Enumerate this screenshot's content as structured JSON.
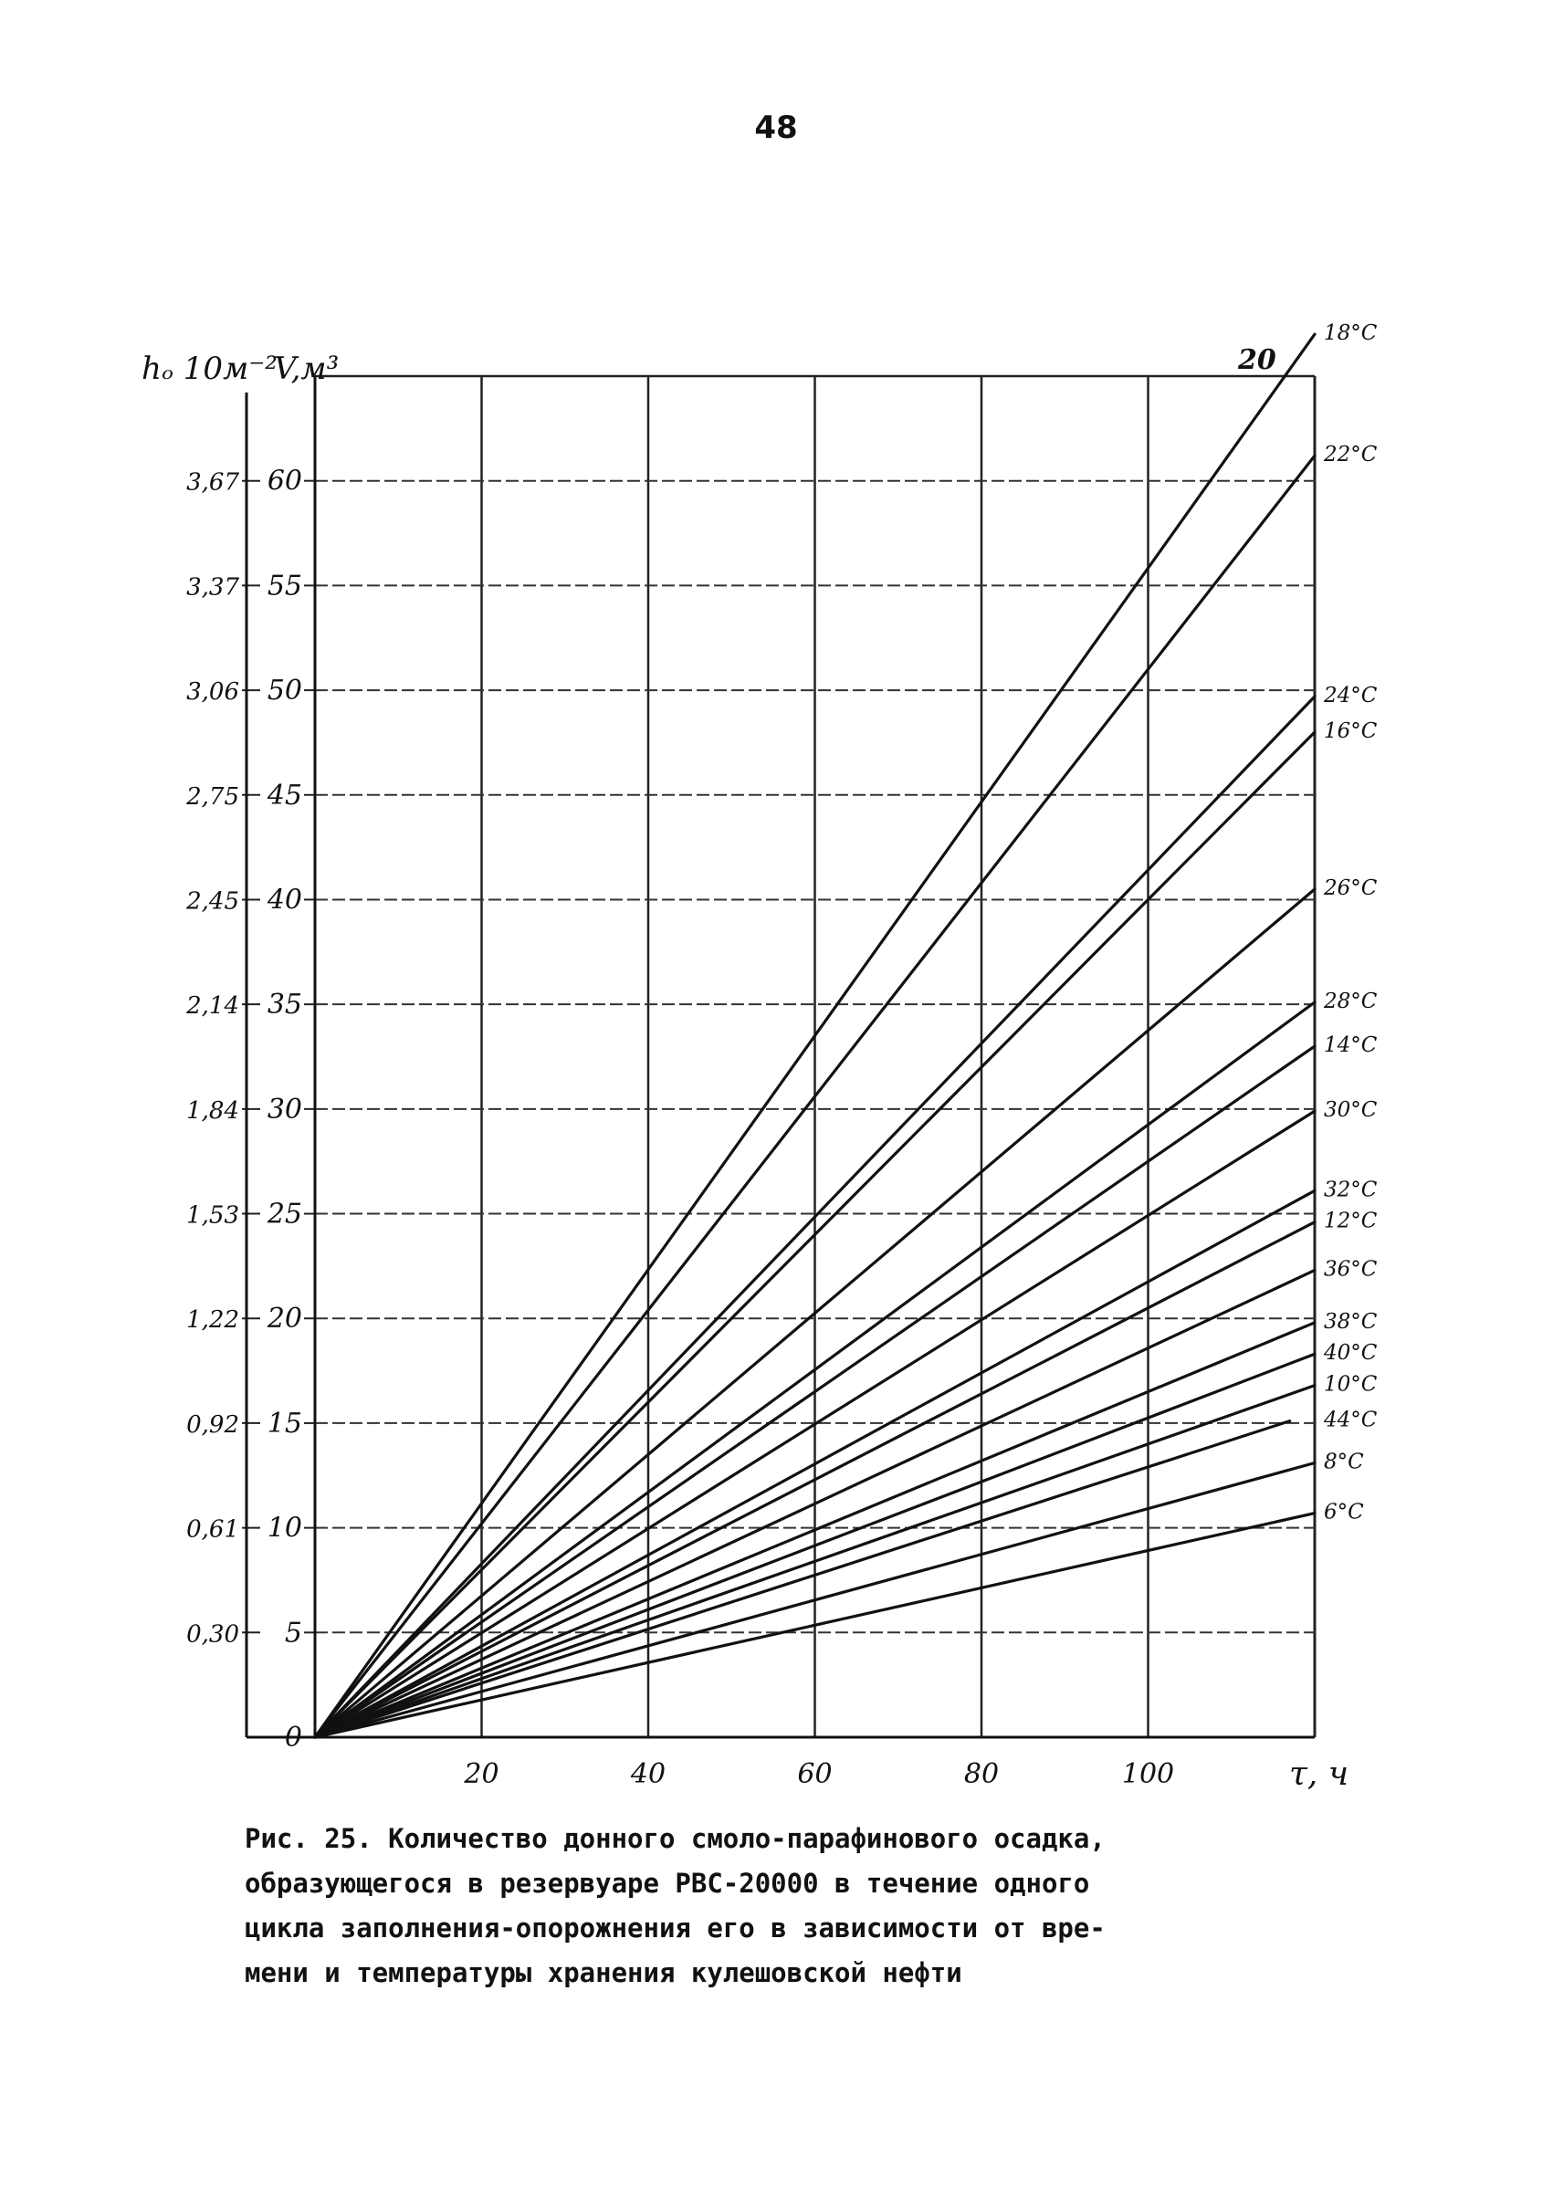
{
  "page": {
    "number": "48"
  },
  "chart_data": {
    "type": "line",
    "xlabel": "τ, ч",
    "ylabel": "V,м³",
    "y2label": "hₒ 10м⁻²",
    "xlim": [
      0,
      120
    ],
    "ylim": [
      0,
      65
    ],
    "grid": true,
    "x_ticks": [
      "20",
      "40",
      "60",
      "80",
      "100"
    ],
    "y_ticks": [
      "0",
      "5",
      "10",
      "15",
      "20",
      "25",
      "30",
      "35",
      "40",
      "45",
      "50",
      "55",
      "60"
    ],
    "h_ticks": [
      "0,30",
      "0,61",
      "0,92",
      "1,22",
      "1,53",
      "1,84",
      "2,14",
      "2,45",
      "2,75",
      "3,06",
      "3,37",
      "3,67"
    ],
    "top_label": "20",
    "series": [
      {
        "name": "18°C",
        "x": [
          0,
          120
        ],
        "y": [
          0,
          67.0
        ]
      },
      {
        "name": "22°C",
        "x": [
          0,
          120
        ],
        "y": [
          0,
          61.2
        ]
      },
      {
        "name": "24°C",
        "x": [
          0,
          120
        ],
        "y": [
          0,
          49.7
        ]
      },
      {
        "name": "16°C",
        "x": [
          0,
          120
        ],
        "y": [
          0,
          48.0
        ]
      },
      {
        "name": "26°C",
        "x": [
          0,
          120
        ],
        "y": [
          0,
          40.5
        ]
      },
      {
        "name": "28°C",
        "x": [
          0,
          120
        ],
        "y": [
          0,
          35.1
        ]
      },
      {
        "name": "14°C",
        "x": [
          0,
          120
        ],
        "y": [
          0,
          33.0
        ]
      },
      {
        "name": "30°C",
        "x": [
          0,
          120
        ],
        "y": [
          0,
          29.9
        ]
      },
      {
        "name": "32°C",
        "x": [
          0,
          120
        ],
        "y": [
          0,
          26.1
        ]
      },
      {
        "name": "12°C",
        "x": [
          0,
          120
        ],
        "y": [
          0,
          24.6
        ]
      },
      {
        "name": "36°C",
        "x": [
          0,
          120
        ],
        "y": [
          0,
          22.3
        ]
      },
      {
        "name": "38°C",
        "x": [
          0,
          120
        ],
        "y": [
          0,
          19.8
        ]
      },
      {
        "name": "40°C",
        "x": [
          0,
          120
        ],
        "y": [
          0,
          18.3
        ]
      },
      {
        "name": "10°C",
        "x": [
          0,
          120
        ],
        "y": [
          0,
          16.8
        ]
      },
      {
        "name": "44°C",
        "x": [
          0,
          117
        ],
        "y": [
          0,
          15.1
        ]
      },
      {
        "name": "8°C",
        "x": [
          0,
          120
        ],
        "y": [
          0,
          13.1
        ]
      },
      {
        "name": "6°C",
        "x": [
          0,
          120
        ],
        "y": [
          0,
          10.7
        ]
      }
    ]
  },
  "caption": {
    "lines": [
      "Рис. 25. Количество донного смоло-парафинового осадка,",
      "образующегося в резервуаре РВС-20000 в течение одного",
      "цикла заполнения-опорожнения его в зависимости от вре-",
      "мени и температуры хранения кулешовской нефти"
    ]
  }
}
